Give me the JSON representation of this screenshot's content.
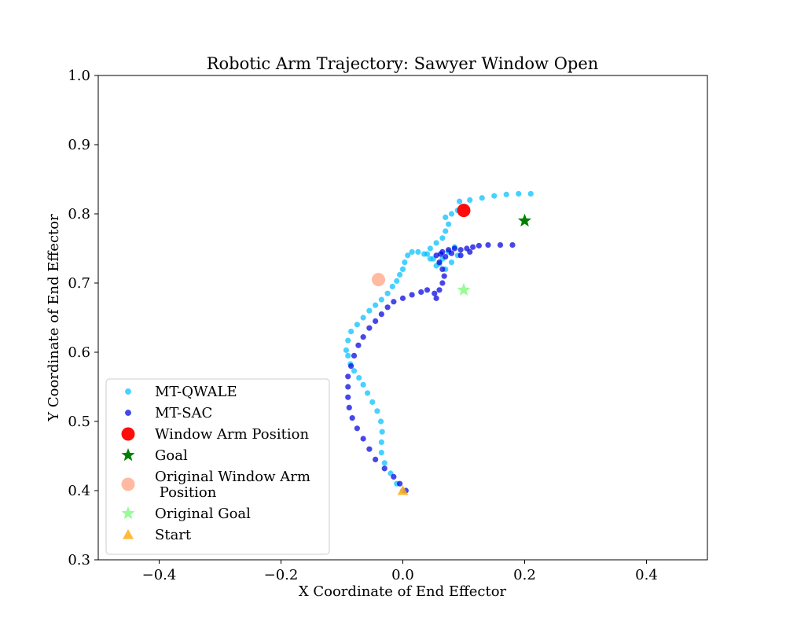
{
  "chart_data": {
    "type": "scatter",
    "title": "Robotic Arm Trajectory: Sawyer Window Open",
    "xlabel": "X Coordinate of End Effector",
    "ylabel": "Y Coordinate of End Effector",
    "xlim": [
      -0.5,
      0.5
    ],
    "ylim": [
      0.3,
      1.0
    ],
    "xticks": [
      -0.4,
      -0.2,
      0.0,
      0.2,
      0.4
    ],
    "xtick_labels": [
      "−0.4",
      "−0.2",
      "0.0",
      "0.2",
      "0.4"
    ],
    "yticks": [
      0.3,
      0.4,
      0.5,
      0.6,
      0.7,
      0.8,
      0.9,
      1.0
    ],
    "ytick_labels": [
      "0.3",
      "0.4",
      "0.5",
      "0.6",
      "0.7",
      "0.8",
      "0.9",
      "1.0"
    ],
    "grid": false,
    "legend_position": "lower-left",
    "series": [
      {
        "name": "MT-QWALE",
        "marker": "circle",
        "color": "#00bfff",
        "points": [
          [
            0.0,
            0.4
          ],
          [
            -0.01,
            0.41
          ],
          [
            -0.02,
            0.425
          ],
          [
            -0.03,
            0.44
          ],
          [
            -0.035,
            0.455
          ],
          [
            -0.035,
            0.47
          ],
          [
            -0.034,
            0.485
          ],
          [
            -0.036,
            0.5
          ],
          [
            -0.042,
            0.515
          ],
          [
            -0.05,
            0.528
          ],
          [
            -0.058,
            0.541
          ],
          [
            -0.065,
            0.553
          ],
          [
            -0.072,
            0.563
          ],
          [
            -0.08,
            0.573
          ],
          [
            -0.086,
            0.583
          ],
          [
            -0.09,
            0.595
          ],
          [
            -0.093,
            0.603
          ],
          [
            -0.09,
            0.617
          ],
          [
            -0.085,
            0.63
          ],
          [
            -0.075,
            0.64
          ],
          [
            -0.065,
            0.65
          ],
          [
            -0.055,
            0.66
          ],
          [
            -0.045,
            0.668
          ],
          [
            -0.035,
            0.676
          ],
          [
            -0.025,
            0.685
          ],
          [
            -0.017,
            0.695
          ],
          [
            -0.01,
            0.703
          ],
          [
            -0.005,
            0.712
          ],
          [
            0.0,
            0.72
          ],
          [
            0.003,
            0.73
          ],
          [
            0.008,
            0.74
          ],
          [
            0.015,
            0.745
          ],
          [
            0.025,
            0.745
          ],
          [
            0.035,
            0.742
          ],
          [
            0.045,
            0.735
          ],
          [
            0.055,
            0.725
          ],
          [
            0.065,
            0.735
          ],
          [
            0.075,
            0.745
          ],
          [
            0.085,
            0.752
          ],
          [
            0.09,
            0.74
          ],
          [
            0.08,
            0.73
          ],
          [
            0.07,
            0.72
          ],
          [
            0.06,
            0.728
          ],
          [
            0.05,
            0.735
          ],
          [
            0.04,
            0.742
          ],
          [
            0.045,
            0.75
          ],
          [
            0.055,
            0.758
          ],
          [
            0.065,
            0.765
          ],
          [
            0.07,
            0.775
          ],
          [
            0.075,
            0.785
          ],
          [
            0.07,
            0.795
          ],
          [
            0.08,
            0.8
          ],
          [
            0.09,
            0.805
          ],
          [
            0.1,
            0.81
          ],
          [
            0.093,
            0.818
          ],
          [
            0.11,
            0.82
          ],
          [
            0.13,
            0.823
          ],
          [
            0.15,
            0.826
          ],
          [
            0.17,
            0.828
          ],
          [
            0.19,
            0.829
          ],
          [
            0.21,
            0.829
          ]
        ]
      },
      {
        "name": "MT-SAC",
        "marker": "circle",
        "color": "#0000e0",
        "points": [
          [
            0.005,
            0.4
          ],
          [
            -0.005,
            0.41
          ],
          [
            -0.015,
            0.42
          ],
          [
            -0.03,
            0.432
          ],
          [
            -0.045,
            0.445
          ],
          [
            -0.055,
            0.46
          ],
          [
            -0.065,
            0.475
          ],
          [
            -0.075,
            0.49
          ],
          [
            -0.083,
            0.505
          ],
          [
            -0.088,
            0.52
          ],
          [
            -0.09,
            0.535
          ],
          [
            -0.09,
            0.55
          ],
          [
            -0.09,
            0.565
          ],
          [
            -0.085,
            0.58
          ],
          [
            -0.08,
            0.595
          ],
          [
            -0.073,
            0.61
          ],
          [
            -0.065,
            0.622
          ],
          [
            -0.055,
            0.635
          ],
          [
            -0.045,
            0.645
          ],
          [
            -0.035,
            0.655
          ],
          [
            -0.025,
            0.665
          ],
          [
            -0.015,
            0.673
          ],
          [
            0.0,
            0.678
          ],
          [
            0.015,
            0.683
          ],
          [
            0.03,
            0.687
          ],
          [
            0.04,
            0.69
          ],
          [
            0.052,
            0.685
          ],
          [
            0.055,
            0.678
          ],
          [
            0.06,
            0.69
          ],
          [
            0.065,
            0.7
          ],
          [
            0.068,
            0.71
          ],
          [
            0.065,
            0.72
          ],
          [
            0.06,
            0.73
          ],
          [
            0.055,
            0.74
          ],
          [
            0.065,
            0.745
          ],
          [
            0.075,
            0.748
          ],
          [
            0.085,
            0.75
          ],
          [
            0.095,
            0.748
          ],
          [
            0.105,
            0.75
          ],
          [
            0.115,
            0.752
          ],
          [
            0.125,
            0.754
          ],
          [
            0.14,
            0.755
          ],
          [
            0.16,
            0.755
          ],
          [
            0.18,
            0.755
          ],
          [
            0.11,
            0.745
          ],
          [
            0.095,
            0.74
          ],
          [
            0.08,
            0.743
          ],
          [
            0.07,
            0.738
          ],
          [
            0.062,
            0.742
          ]
        ]
      },
      {
        "name": "Window Arm Position",
        "marker": "circle-large",
        "color": "#ff0000",
        "points": [
          [
            0.1,
            0.805
          ]
        ]
      },
      {
        "name": "Goal",
        "marker": "star",
        "color": "#008000",
        "points": [
          [
            0.2,
            0.79
          ]
        ]
      },
      {
        "name": "Original Window Arm\n Position",
        "marker": "circle-large",
        "color": "#ffb69c",
        "points": [
          [
            -0.04,
            0.705
          ]
        ]
      },
      {
        "name": "Original Goal",
        "marker": "star",
        "color": "#98fb98",
        "points": [
          [
            0.1,
            0.69
          ]
        ]
      },
      {
        "name": "Start",
        "marker": "triangle",
        "color": "#ffae1a",
        "points": [
          [
            0.0,
            0.4
          ]
        ]
      }
    ]
  }
}
